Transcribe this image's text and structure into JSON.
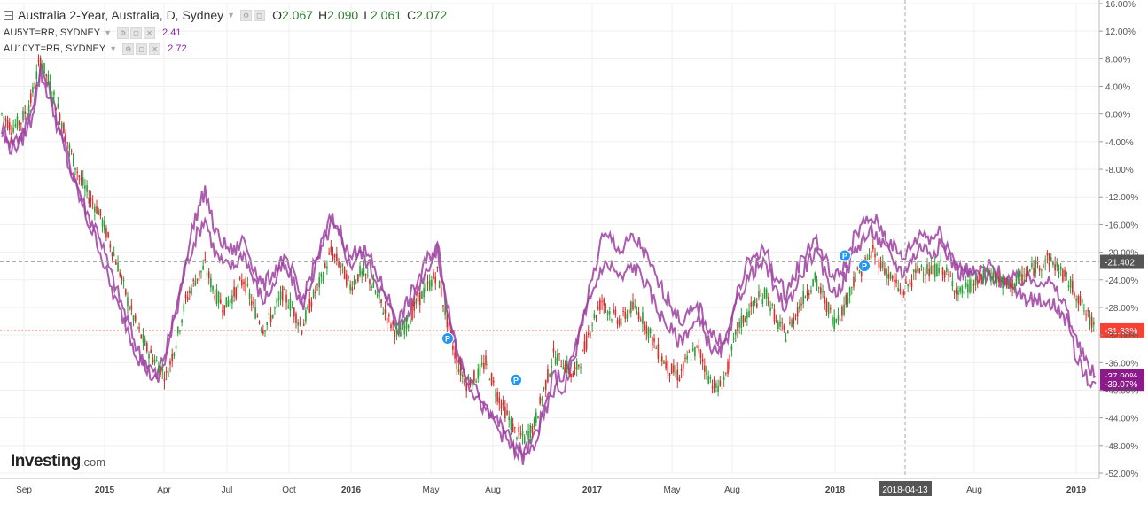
{
  "legend": {
    "main": {
      "title": "Australia 2-Year, Australia, D, Sydney",
      "o_label": "O",
      "o_value": "2.067",
      "h_label": "H",
      "h_value": "2.090",
      "l_label": "L",
      "l_value": "2.061",
      "c_label": "C",
      "c_value": "2.072"
    },
    "series": [
      {
        "title": "AU5YT=RR, SYDNEY",
        "value": "2.41"
      },
      {
        "title": "AU10YT=RR, SYDNEY",
        "value": "2.72"
      }
    ]
  },
  "logo": {
    "main": "Investing",
    "suffix": ".com"
  },
  "colors": {
    "up": "#2e9e3a",
    "down": "#d32f2f",
    "compare": "#9c3fa0",
    "red_marker": "#f44336",
    "purple_marker": "#8b1a8b",
    "grid": "#efefef",
    "p_badge": "#2196f3"
  },
  "chart_data": {
    "type": "line",
    "ylim": [
      -52,
      16
    ],
    "y_ticks": [
      "16.00%",
      "12.00%",
      "8.00%",
      "4.00%",
      "0.00%",
      "-4.00%",
      "-8.00%",
      "-12.00%",
      "-16.00%",
      "-20.00%",
      "-24.00%",
      "-28.00%",
      "-32.00%",
      "-36.00%",
      "-40.00%",
      "-44.00%",
      "-48.00%",
      "-52.00%"
    ],
    "x_ticks": [
      "Sep",
      "2015",
      "Apr",
      "Jul",
      "Oct",
      "2016",
      "May",
      "Aug",
      "2017",
      "May",
      "Aug",
      "2018",
      "2018-04-13",
      "Aug",
      "2019"
    ],
    "crosshair_date": "2018-04-13",
    "crosshair_y": -21.402,
    "crosshair_y_label": "-21.402",
    "last_markers": [
      {
        "label": "-31.33%",
        "value": -31.33,
        "style": "red"
      },
      {
        "label": "-37.90%",
        "value": -37.9,
        "style": "purple"
      },
      {
        "label": "-39.07%",
        "value": -39.07,
        "style": "purple"
      }
    ],
    "badges": [
      "P",
      "P",
      "P",
      "P"
    ],
    "series": [
      {
        "name": "Australia 2-Year",
        "style": "candles",
        "values": [
          0,
          -2,
          -1,
          2,
          8,
          4,
          0,
          -5,
          -9,
          -12,
          -14,
          -18,
          -22,
          -27,
          -31,
          -34,
          -36,
          -38,
          -33,
          -27,
          -24,
          -22,
          -26,
          -28,
          -26,
          -24,
          -28,
          -31,
          -29,
          -26,
          -28,
          -31,
          -27,
          -24,
          -20,
          -22,
          -25,
          -23,
          -24,
          -27,
          -30,
          -32,
          -30,
          -27,
          -25,
          -23,
          -30,
          -36,
          -39,
          -38,
          -36,
          -40,
          -43,
          -46,
          -47,
          -45,
          -40,
          -35,
          -36,
          -38,
          -35,
          -30,
          -27,
          -29,
          -30,
          -28,
          -29,
          -32,
          -35,
          -37,
          -38,
          -35,
          -34,
          -38,
          -40,
          -37,
          -31,
          -29,
          -27,
          -26,
          -30,
          -32,
          -29,
          -26,
          -24,
          -27,
          -30,
          -28,
          -24,
          -22,
          -20,
          -22,
          -24,
          -26,
          -24,
          -22,
          -23,
          -22,
          -24,
          -26,
          -25,
          -24,
          -23,
          -24,
          -25,
          -24,
          -23,
          -22,
          -21,
          -22,
          -24,
          -26,
          -29,
          -31
        ]
      },
      {
        "name": "AU5YT=RR",
        "style": "line",
        "values": [
          -2,
          -4,
          -3,
          0,
          7,
          3,
          -2,
          -7,
          -11,
          -15,
          -17,
          -22,
          -26,
          -30,
          -34,
          -36,
          -38,
          -34,
          -28,
          -22,
          -18,
          -15,
          -20,
          -22,
          -22,
          -20,
          -24,
          -27,
          -25,
          -22,
          -24,
          -28,
          -24,
          -20,
          -16,
          -18,
          -22,
          -20,
          -22,
          -25,
          -28,
          -31,
          -29,
          -25,
          -22,
          -20,
          -28,
          -35,
          -38,
          -40,
          -42,
          -44,
          -46,
          -48,
          -49,
          -47,
          -43,
          -38,
          -38,
          -35,
          -30,
          -26,
          -22,
          -22,
          -24,
          -22,
          -23,
          -26,
          -29,
          -31,
          -33,
          -31,
          -30,
          -33,
          -35,
          -33,
          -27,
          -24,
          -22,
          -22,
          -26,
          -28,
          -25,
          -22,
          -20,
          -23,
          -26,
          -24,
          -20,
          -18,
          -17,
          -19,
          -21,
          -23,
          -21,
          -19,
          -20,
          -19,
          -21,
          -23,
          -23,
          -23,
          -22,
          -23,
          -24,
          -24,
          -24,
          -24,
          -24,
          -26,
          -28,
          -33,
          -36,
          -38
        ]
      },
      {
        "name": "AU10YT=RR",
        "style": "line",
        "values": [
          -3,
          -5,
          -4,
          -1,
          6,
          2,
          -3,
          -8,
          -12,
          -16,
          -19,
          -24,
          -28,
          -31,
          -35,
          -37,
          -39,
          -35,
          -29,
          -21,
          -15,
          -11,
          -17,
          -19,
          -20,
          -18,
          -22,
          -25,
          -23,
          -21,
          -23,
          -27,
          -23,
          -19,
          -15,
          -17,
          -21,
          -19,
          -21,
          -24,
          -27,
          -30,
          -27,
          -24,
          -21,
          -19,
          -27,
          -34,
          -38,
          -41,
          -43,
          -45,
          -47,
          -49,
          -50,
          -48,
          -44,
          -40,
          -40,
          -36,
          -30,
          -24,
          -18,
          -18,
          -20,
          -18,
          -19,
          -22,
          -25,
          -27,
          -30,
          -29,
          -28,
          -31,
          -33,
          -32,
          -26,
          -22,
          -20,
          -20,
          -24,
          -26,
          -23,
          -20,
          -18,
          -21,
          -24,
          -22,
          -18,
          -16,
          -15,
          -17,
          -19,
          -21,
          -19,
          -17,
          -18,
          -17,
          -20,
          -22,
          -23,
          -24,
          -23,
          -24,
          -25,
          -26,
          -27,
          -27,
          -27,
          -28,
          -30,
          -35,
          -38,
          -39
        ]
      }
    ]
  }
}
